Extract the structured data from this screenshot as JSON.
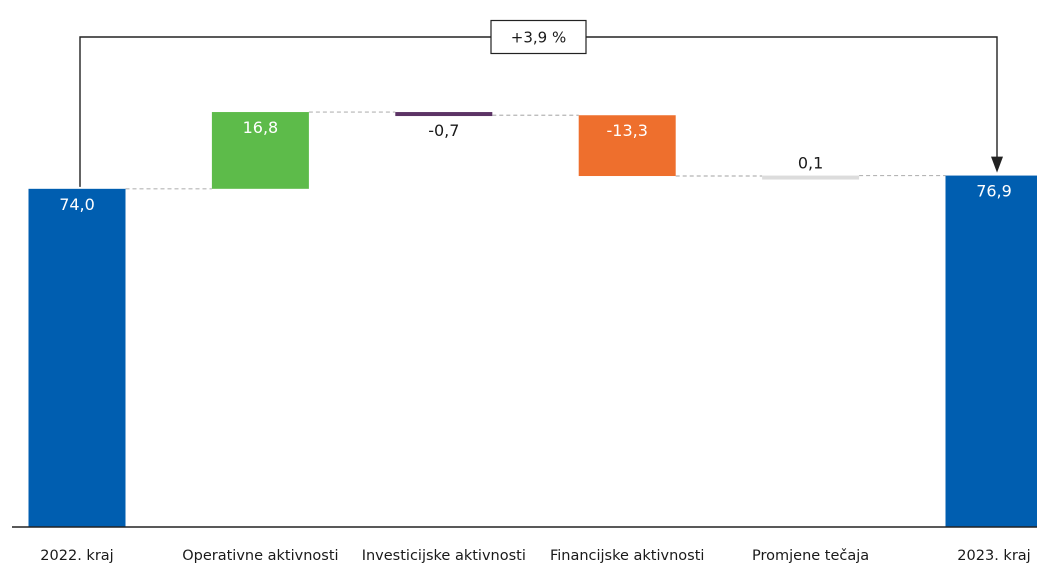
{
  "chart_data": {
    "type": "waterfall",
    "title": "",
    "xlabel": "",
    "ylabel": "",
    "ylim": [
      0,
      95
    ],
    "grid": false,
    "legend": "none",
    "categories": [
      "2022. kraj",
      "Operativne aktivnosti",
      "Investicijske aktivnosti",
      "Financijske aktivnosti",
      "Promjene tečaja",
      "2023. kraj"
    ],
    "values": [
      74.0,
      16.8,
      -0.7,
      -13.3,
      0.1,
      76.9
    ],
    "labels": [
      "74,0",
      "16,8",
      "-0,7",
      "-13,3",
      "0,1",
      "76,9"
    ],
    "kinds": [
      "total",
      "delta",
      "delta",
      "delta",
      "delta",
      "total"
    ],
    "colors": [
      "#005EB0",
      "#5DBB4A",
      "#5C3365",
      "#EE6F2D",
      "#DCDCDC",
      "#005EB0"
    ],
    "label_colors": [
      "#ffffff",
      "#ffffff",
      "#1a1a1a",
      "#ffffff",
      "#1a1a1a",
      "#ffffff"
    ],
    "annotation": {
      "text": "+3,9 %",
      "from": 0,
      "to": 5
    }
  }
}
